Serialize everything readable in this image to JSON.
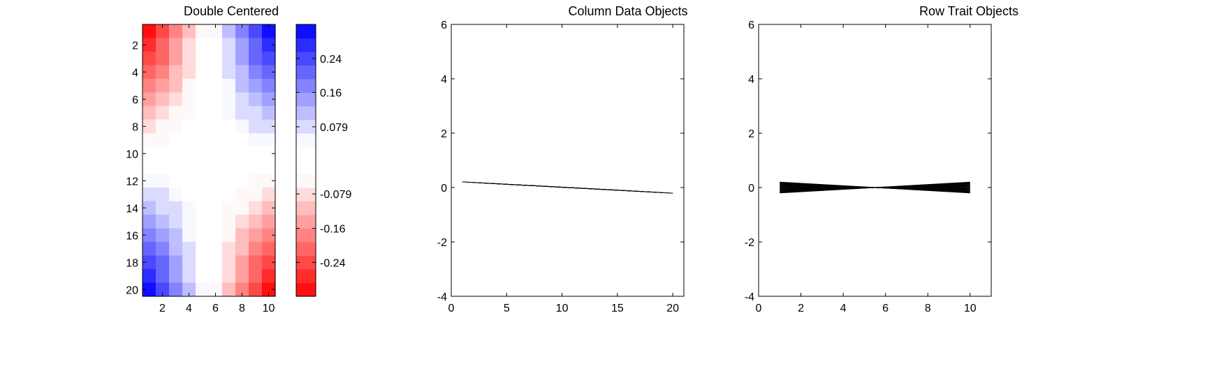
{
  "chart_data": [
    {
      "type": "heatmap",
      "title": "Double Centered",
      "x_ticks": [
        2,
        4,
        6,
        8,
        10
      ],
      "y_ticks": [
        2,
        4,
        6,
        8,
        10,
        12,
        14,
        16,
        18,
        20
      ],
      "n_rows": 20,
      "n_cols": 10,
      "values": [
        [
          -0.315,
          -0.245,
          -0.175,
          -0.105,
          -0.035,
          0.035,
          0.105,
          0.175,
          0.245,
          0.315
        ],
        [
          -0.282,
          -0.219,
          -0.156,
          -0.094,
          -0.031,
          0.031,
          0.094,
          0.156,
          0.219,
          0.282
        ],
        [
          -0.248,
          -0.193,
          -0.138,
          -0.083,
          -0.028,
          0.028,
          0.083,
          0.138,
          0.193,
          0.248
        ],
        [
          -0.215,
          -0.167,
          -0.119,
          -0.072,
          -0.024,
          0.024,
          0.072,
          0.119,
          0.167,
          0.215
        ],
        [
          -0.182,
          -0.141,
          -0.101,
          -0.061,
          -0.02,
          0.02,
          0.061,
          0.101,
          0.141,
          0.182
        ],
        [
          -0.149,
          -0.116,
          -0.083,
          -0.05,
          -0.017,
          0.017,
          0.05,
          0.083,
          0.116,
          0.149
        ],
        [
          -0.116,
          -0.09,
          -0.064,
          -0.039,
          -0.013,
          0.013,
          0.039,
          0.064,
          0.09,
          0.116
        ],
        [
          -0.083,
          -0.064,
          -0.046,
          -0.028,
          -0.009,
          0.009,
          0.028,
          0.046,
          0.064,
          0.083
        ],
        [
          -0.05,
          -0.039,
          -0.028,
          -0.017,
          -0.006,
          0.006,
          0.017,
          0.028,
          0.039,
          0.05
        ],
        [
          -0.017,
          -0.013,
          -0.009,
          -0.006,
          -0.002,
          0.002,
          0.006,
          0.009,
          0.013,
          0.017
        ],
        [
          0.017,
          0.013,
          0.009,
          0.006,
          0.002,
          -0.002,
          -0.006,
          -0.009,
          -0.013,
          -0.017
        ],
        [
          0.05,
          0.039,
          0.028,
          0.017,
          0.006,
          -0.006,
          -0.017,
          -0.028,
          -0.039,
          -0.05
        ],
        [
          0.083,
          0.064,
          0.046,
          0.028,
          0.009,
          -0.009,
          -0.028,
          -0.046,
          -0.064,
          -0.083
        ],
        [
          0.116,
          0.09,
          0.064,
          0.039,
          0.013,
          -0.013,
          -0.039,
          -0.064,
          -0.09,
          -0.116
        ],
        [
          0.149,
          0.116,
          0.083,
          0.05,
          0.017,
          -0.017,
          -0.05,
          -0.083,
          -0.116,
          -0.149
        ],
        [
          0.182,
          0.141,
          0.101,
          0.061,
          0.02,
          -0.02,
          -0.061,
          -0.101,
          -0.141,
          -0.182
        ],
        [
          0.215,
          0.167,
          0.119,
          0.072,
          0.024,
          -0.024,
          -0.072,
          -0.119,
          -0.167,
          -0.215
        ],
        [
          0.248,
          0.193,
          0.138,
          0.083,
          0.028,
          -0.028,
          -0.083,
          -0.138,
          -0.193,
          -0.248
        ],
        [
          0.282,
          0.219,
          0.156,
          0.094,
          0.031,
          -0.031,
          -0.094,
          -0.156,
          -0.219,
          -0.282
        ],
        [
          0.315,
          0.245,
          0.175,
          0.105,
          0.035,
          -0.035,
          -0.105,
          -0.175,
          -0.245,
          -0.315
        ]
      ],
      "colorbar": {
        "range": [
          -0.32,
          0.32
        ],
        "tick_values": [
          0.24,
          0.16,
          0.079,
          -0.079,
          -0.16,
          -0.24
        ],
        "tick_labels": [
          "0.24",
          "0.16",
          "0.079",
          "-0.079",
          "-0.16",
          "-0.24"
        ],
        "low_color": "#ff0000",
        "high_color": "#0000ff",
        "mid_color": "#ffffff",
        "white_band": 0.04,
        "levels": 20
      }
    },
    {
      "type": "line",
      "title": "Column Data Objects",
      "xlim": [
        0,
        21
      ],
      "ylim": [
        -4,
        6
      ],
      "x_ticks": [
        0,
        5,
        10,
        15,
        20
      ],
      "y_ticks": [
        -4,
        -2,
        0,
        2,
        4,
        6
      ],
      "line_color": "#000000",
      "series": [
        {
          "x": [
            1,
            20
          ],
          "y": [
            0.207,
            -0.207
          ]
        },
        {
          "x": [
            2,
            19
          ],
          "y": [
            0.185,
            -0.185
          ]
        },
        {
          "x": [
            3,
            18
          ],
          "y": [
            0.163,
            -0.163
          ]
        },
        {
          "x": [
            4,
            17
          ],
          "y": [
            0.141,
            -0.141
          ]
        },
        {
          "x": [
            5,
            16
          ],
          "y": [
            0.12,
            -0.12
          ]
        },
        {
          "x": [
            6,
            15
          ],
          "y": [
            0.098,
            -0.098
          ]
        },
        {
          "x": [
            7,
            14
          ],
          "y": [
            0.076,
            -0.076
          ]
        },
        {
          "x": [
            8,
            13
          ],
          "y": [
            0.054,
            -0.054
          ]
        },
        {
          "x": [
            9,
            12
          ],
          "y": [
            0.033,
            -0.033
          ]
        },
        {
          "x": [
            10,
            11
          ],
          "y": [
            0.011,
            -0.011
          ]
        },
        {
          "x": [
            11,
            10
          ],
          "y": [
            -0.011,
            0.011
          ]
        },
        {
          "x": [
            12,
            9
          ],
          "y": [
            -0.033,
            0.033
          ]
        },
        {
          "x": [
            13,
            8
          ],
          "y": [
            -0.054,
            0.054
          ]
        },
        {
          "x": [
            14,
            7
          ],
          "y": [
            -0.076,
            0.076
          ]
        },
        {
          "x": [
            15,
            6
          ],
          "y": [
            -0.098,
            0.098
          ]
        },
        {
          "x": [
            16,
            5
          ],
          "y": [
            -0.12,
            0.12
          ]
        },
        {
          "x": [
            17,
            4
          ],
          "y": [
            -0.141,
            0.141
          ]
        },
        {
          "x": [
            18,
            3
          ],
          "y": [
            -0.163,
            0.163
          ]
        },
        {
          "x": [
            19,
            2
          ],
          "y": [
            -0.185,
            0.185
          ]
        },
        {
          "x": [
            20,
            1
          ],
          "y": [
            -0.207,
            0.207
          ]
        }
      ]
    },
    {
      "type": "line",
      "title": "Row Trait Objects",
      "xlim": [
        0,
        11
      ],
      "ylim": [
        -4,
        6
      ],
      "x_ticks": [
        0,
        2,
        4,
        6,
        8,
        10
      ],
      "y_ticks": [
        -4,
        -2,
        0,
        2,
        4,
        6
      ],
      "line_color": "#000000",
      "series": [
        {
          "x": [
            1,
            10
          ],
          "y": [
            0.2,
            -0.2
          ]
        },
        {
          "x": [
            1,
            10
          ],
          "y": [
            0.179,
            -0.179
          ]
        },
        {
          "x": [
            1,
            10
          ],
          "y": [
            0.158,
            -0.158
          ]
        },
        {
          "x": [
            1,
            10
          ],
          "y": [
            0.137,
            -0.137
          ]
        },
        {
          "x": [
            1,
            10
          ],
          "y": [
            0.116,
            -0.116
          ]
        },
        {
          "x": [
            1,
            10
          ],
          "y": [
            0.095,
            -0.095
          ]
        },
        {
          "x": [
            1,
            10
          ],
          "y": [
            0.074,
            -0.074
          ]
        },
        {
          "x": [
            1,
            10
          ],
          "y": [
            0.053,
            -0.053
          ]
        },
        {
          "x": [
            1,
            10
          ],
          "y": [
            0.032,
            -0.032
          ]
        },
        {
          "x": [
            1,
            10
          ],
          "y": [
            0.011,
            -0.011
          ]
        },
        {
          "x": [
            1,
            10
          ],
          "y": [
            -0.011,
            0.011
          ]
        },
        {
          "x": [
            1,
            10
          ],
          "y": [
            -0.032,
            0.032
          ]
        },
        {
          "x": [
            1,
            10
          ],
          "y": [
            -0.053,
            0.053
          ]
        },
        {
          "x": [
            1,
            10
          ],
          "y": [
            -0.074,
            0.074
          ]
        },
        {
          "x": [
            1,
            10
          ],
          "y": [
            -0.095,
            0.095
          ]
        },
        {
          "x": [
            1,
            10
          ],
          "y": [
            -0.116,
            0.116
          ]
        },
        {
          "x": [
            1,
            10
          ],
          "y": [
            -0.137,
            0.137
          ]
        },
        {
          "x": [
            1,
            10
          ],
          "y": [
            -0.158,
            0.158
          ]
        },
        {
          "x": [
            1,
            10
          ],
          "y": [
            -0.179,
            0.179
          ]
        },
        {
          "x": [
            1,
            10
          ],
          "y": [
            -0.2,
            0.2
          ]
        }
      ]
    }
  ]
}
